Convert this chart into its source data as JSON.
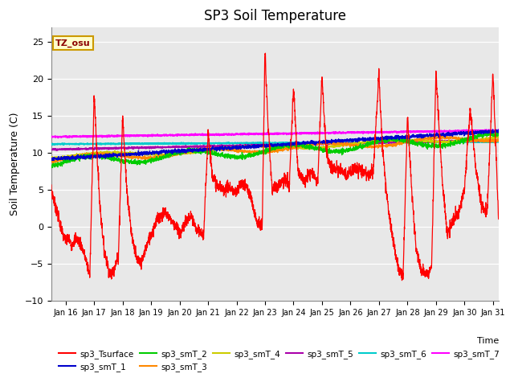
{
  "title": "SP3 Soil Temperature",
  "ylabel": "Soil Temperature (C)",
  "xlabel": "Time",
  "xlim_days": [
    15.5,
    31.2
  ],
  "ylim": [
    -10,
    27
  ],
  "yticks": [
    -10,
    -5,
    0,
    5,
    10,
    15,
    20,
    25
  ],
  "background_color": "#e8e8e8",
  "annotation_text": "TZ_osu",
  "annotation_color": "#8B0000",
  "annotation_bg": "#ffffcc",
  "series_colors": {
    "sp3_Tsurface": "#ff0000",
    "sp3_smT_1": "#0000cc",
    "sp3_smT_2": "#00cc00",
    "sp3_smT_3": "#ff8800",
    "sp3_smT_4": "#cccc00",
    "sp3_smT_5": "#aa00aa",
    "sp3_smT_6": "#00cccc",
    "sp3_smT_7": "#ff00ff"
  }
}
